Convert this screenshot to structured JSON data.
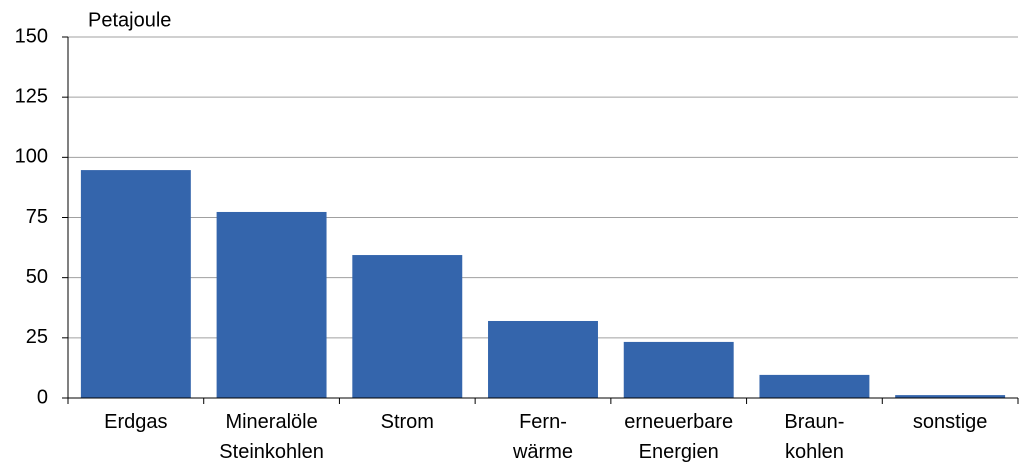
{
  "chart_data": {
    "type": "bar",
    "y_label": "Petajoule",
    "categories": [
      [
        "Erdgas"
      ],
      [
        "Mineralöle",
        "Steinkohlen"
      ],
      [
        "Strom"
      ],
      [
        "Fern-",
        "wärme"
      ],
      [
        "erneuerbare",
        "Energien"
      ],
      [
        "Braun-",
        "kohlen"
      ],
      [
        "sonstige"
      ]
    ],
    "values": [
      94.7,
      77.3,
      59.4,
      32,
      23.3,
      9.6,
      1.2
    ],
    "color": "#3465ac",
    "ylim": [
      0,
      150
    ],
    "yticks": [
      0,
      25,
      50,
      75,
      100,
      125,
      150
    ],
    "grid": true
  }
}
